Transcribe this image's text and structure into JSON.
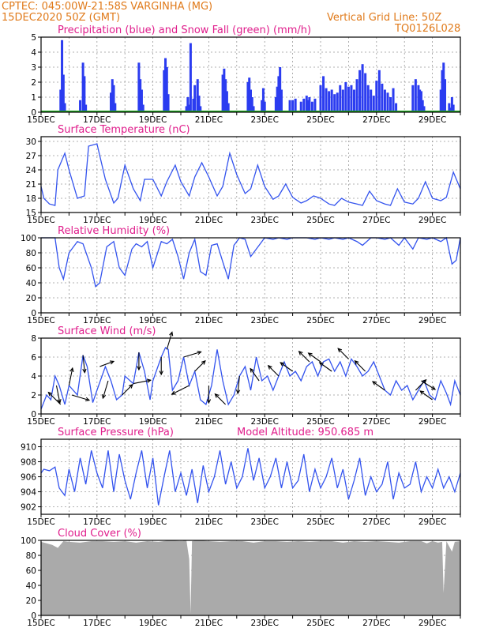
{
  "header": {
    "line1": "CPTEC:   045:00W-21:58S   VARGINHA (MG)",
    "line2_left": "15DEC2020 50Z (GMT)",
    "line2_right": "Vertical Grid Line: 50Z",
    "line3_right": "TQ0126L028"
  },
  "x_tick_labels": [
    "15DEC",
    "17DEC",
    "19DEC",
    "21DEC",
    "23DEC",
    "25DEC",
    "27DEC",
    "29DEC"
  ],
  "colors": {
    "line": "#3353ee",
    "bar": "#2b3cf0",
    "snow": "#22aa22",
    "arrow": "#000000",
    "cloud": "#aaaaaa",
    "title": "#e01e8c",
    "header": "#e07a1a"
  },
  "chart_data": [
    {
      "type": "bar",
      "title": "Precipitation (blue) and Snow Fall (green) (mm/h)",
      "xlabel": "",
      "ylabel": "",
      "ylim": [
        0,
        5
      ],
      "yticks": [
        0,
        1,
        2,
        3,
        4,
        5
      ],
      "x_range": [
        15,
        30
      ],
      "grid": true,
      "series": [
        {
          "name": "Precipitation",
          "x": [
            15.7,
            15.75,
            15.8,
            15.85,
            16.4,
            16.5,
            16.55,
            16.6,
            17.5,
            17.55,
            17.6,
            17.65,
            18.5,
            18.55,
            18.6,
            18.65,
            19.4,
            19.45,
            19.5,
            19.55,
            20.2,
            20.25,
            20.3,
            20.35,
            20.45,
            20.5,
            20.6,
            20.65,
            20.7,
            21.5,
            21.55,
            21.6,
            21.65,
            21.7,
            22.4,
            22.45,
            22.5,
            22.55,
            22.6,
            22.9,
            22.95,
            23.0,
            23.4,
            23.45,
            23.5,
            23.55,
            23.6,
            23.9,
            24.0,
            24.1,
            24.3,
            24.4,
            24.5,
            24.55,
            24.6,
            24.7,
            24.8,
            25.0,
            25.1,
            25.2,
            25.3,
            25.4,
            25.5,
            25.6,
            25.7,
            25.8,
            25.9,
            26.0,
            26.1,
            26.2,
            26.3,
            26.4,
            26.5,
            26.6,
            26.7,
            26.8,
            26.9,
            27.0,
            27.1,
            27.2,
            27.3,
            27.4,
            27.5,
            27.6,
            27.7,
            28.3,
            28.4,
            28.5,
            28.55,
            28.6,
            28.65,
            28.7,
            29.3,
            29.35,
            29.4,
            29.45,
            29.6,
            29.65,
            29.7,
            29.75
          ],
          "values": [
            1.5,
            4.8,
            2.5,
            0.6,
            0.8,
            3.3,
            2.4,
            0.5,
            1.3,
            2.2,
            1.8,
            0.6,
            3.3,
            2.2,
            1.5,
            0.5,
            2.8,
            3.6,
            3.0,
            1.2,
            0.4,
            1.0,
            0.5,
            4.6,
            0.9,
            1.8,
            2.2,
            1.1,
            0.4,
            2.5,
            2.9,
            2.2,
            1.4,
            0.6,
            2.0,
            2.3,
            1.5,
            1.0,
            0.4,
            0.8,
            1.6,
            0.7,
            1.0,
            1.7,
            2.4,
            3.0,
            1.5,
            0.8,
            0.8,
            0.9,
            0.7,
            0.9,
            1.1,
            0.8,
            1.0,
            0.7,
            0.9,
            1.8,
            2.4,
            1.6,
            1.4,
            1.5,
            1.2,
            1.3,
            1.8,
            1.5,
            2.0,
            1.7,
            1.8,
            1.5,
            2.2,
            2.8,
            3.2,
            2.6,
            1.8,
            1.5,
            1.1,
            2.1,
            2.8,
            1.9,
            1.5,
            1.3,
            1.0,
            1.6,
            0.6,
            1.8,
            2.2,
            1.8,
            1.5,
            1.4,
            0.8,
            0.4,
            1.5,
            2.8,
            3.3,
            2.2,
            0.6,
            0.3,
            1.0,
            0.5
          ]
        },
        {
          "name": "Snow Fall",
          "x": [
            15,
            30
          ],
          "values": [
            0,
            0
          ]
        }
      ]
    },
    {
      "type": "line",
      "title": "Surface Temperature (nC)",
      "ylim": [
        15,
        31
      ],
      "yticks": [
        15,
        18,
        21,
        24,
        27,
        30
      ],
      "x_range": [
        15,
        30
      ],
      "grid": true,
      "x": [
        15.0,
        15.1,
        15.3,
        15.5,
        15.6,
        15.85,
        16.0,
        16.3,
        16.55,
        16.7,
        17.0,
        17.3,
        17.6,
        17.75,
        18.0,
        18.3,
        18.55,
        18.7,
        19.0,
        19.3,
        19.5,
        19.8,
        20.0,
        20.3,
        20.5,
        20.75,
        21.0,
        21.3,
        21.5,
        21.75,
        22.0,
        22.3,
        22.5,
        22.75,
        23.0,
        23.3,
        23.5,
        23.75,
        24.0,
        24.3,
        24.5,
        24.75,
        25.0,
        25.3,
        25.5,
        25.75,
        26.0,
        26.3,
        26.5,
        26.75,
        27.0,
        27.3,
        27.5,
        27.75,
        28.0,
        28.3,
        28.5,
        28.75,
        29.0,
        29.3,
        29.5,
        29.75,
        30.0
      ],
      "values": [
        20.5,
        18,
        16.8,
        16.5,
        24,
        27.5,
        24,
        18,
        18.5,
        29,
        29.5,
        22,
        17,
        18,
        25,
        20,
        17.5,
        22,
        22,
        18.5,
        21.5,
        25,
        21.5,
        18.5,
        22.5,
        25.5,
        22.5,
        18.5,
        20.5,
        27.5,
        23,
        19,
        20,
        25,
        20.5,
        17.8,
        18.5,
        21,
        18.2,
        17,
        17.5,
        18.5,
        18,
        16.8,
        16.5,
        18,
        17.2,
        16.8,
        16.5,
        19.5,
        17.5,
        16.8,
        16.5,
        20,
        17.2,
        16.8,
        18,
        21.5,
        18,
        17.5,
        18.2,
        23.5,
        20
      ]
    },
    {
      "type": "line",
      "title": "Relative Humidity (%)",
      "ylim": [
        0,
        100
      ],
      "yticks": [
        0,
        20,
        40,
        60,
        80,
        100
      ],
      "x_range": [
        15,
        30
      ],
      "grid": true,
      "x": [
        15.0,
        15.3,
        15.5,
        15.65,
        15.8,
        16.0,
        16.3,
        16.5,
        16.8,
        16.95,
        17.1,
        17.35,
        17.6,
        17.8,
        18.0,
        18.25,
        18.4,
        18.6,
        18.8,
        19.0,
        19.3,
        19.5,
        19.7,
        19.9,
        20.1,
        20.3,
        20.5,
        20.7,
        20.9,
        21.1,
        21.3,
        21.5,
        21.7,
        21.9,
        22.1,
        22.3,
        22.5,
        22.8,
        23.0,
        23.3,
        23.5,
        23.8,
        24.0,
        24.3,
        24.5,
        24.8,
        25.0,
        25.3,
        25.5,
        25.8,
        26.0,
        26.3,
        26.5,
        26.8,
        27.0,
        27.3,
        27.5,
        27.8,
        28.0,
        28.3,
        28.5,
        28.8,
        29.0,
        29.3,
        29.5,
        29.7,
        29.85,
        30.0
      ],
      "values": [
        100,
        100,
        100,
        60,
        45,
        80,
        95,
        92,
        60,
        35,
        40,
        88,
        95,
        60,
        50,
        85,
        92,
        88,
        95,
        60,
        95,
        92,
        98,
        75,
        45,
        80,
        98,
        55,
        50,
        90,
        92,
        68,
        45,
        90,
        100,
        98,
        75,
        90,
        100,
        98,
        100,
        98,
        100,
        100,
        100,
        98,
        100,
        98,
        100,
        98,
        100,
        95,
        90,
        100,
        100,
        98,
        100,
        90,
        100,
        85,
        100,
        98,
        100,
        95,
        100,
        65,
        70,
        100
      ]
    },
    {
      "type": "line",
      "title": "Surface Wind (m/s)",
      "ylim": [
        0,
        8
      ],
      "yticks": [
        0,
        2,
        4,
        6,
        8
      ],
      "x_range": [
        15,
        30
      ],
      "grid": true,
      "x": [
        15.0,
        15.2,
        15.35,
        15.5,
        15.65,
        15.85,
        16.0,
        16.3,
        16.5,
        16.65,
        16.85,
        17.0,
        17.3,
        17.5,
        17.7,
        17.9,
        18.0,
        18.3,
        18.5,
        18.7,
        18.9,
        19.0,
        19.3,
        19.45,
        19.55,
        19.7,
        19.9,
        20.1,
        20.3,
        20.5,
        20.7,
        20.9,
        21.1,
        21.3,
        21.5,
        21.7,
        21.9,
        22.1,
        22.3,
        22.5,
        22.7,
        22.9,
        23.1,
        23.3,
        23.5,
        23.7,
        23.9,
        24.1,
        24.3,
        24.5,
        24.7,
        24.9,
        25.1,
        25.3,
        25.5,
        25.7,
        25.9,
        26.1,
        26.3,
        26.5,
        26.7,
        26.9,
        27.1,
        27.3,
        27.5,
        27.7,
        27.9,
        28.1,
        28.3,
        28.5,
        28.7,
        28.9,
        29.1,
        29.3,
        29.5,
        29.65,
        29.8,
        30.0
      ],
      "values": [
        0.5,
        2,
        1.5,
        4,
        3,
        1,
        3,
        2,
        6.2,
        5,
        1.2,
        2.5,
        5,
        3.5,
        1.5,
        2,
        4,
        3.2,
        6.5,
        4.5,
        1.5,
        3.5,
        6,
        7,
        6.8,
        2.5,
        3.5,
        6,
        3,
        4.5,
        1.5,
        1,
        3,
        6.8,
        3.5,
        1,
        2,
        4,
        5,
        2.5,
        6,
        3.5,
        4,
        2.5,
        4,
        5.5,
        4,
        4.5,
        3.5,
        5,
        5.5,
        4,
        5.5,
        5.8,
        4.5,
        5.5,
        4,
        5.8,
        5,
        4,
        4.5,
        5.5,
        4,
        2.5,
        2,
        3.5,
        2.5,
        3,
        1.5,
        2.5,
        3.5,
        2,
        1.5,
        3.5,
        2.2,
        1,
        3.5,
        2
      ]
    },
    {
      "type": "line",
      "title": "Surface Pressure (hPa)",
      "annotation": "Model Altitude: 950.685  m",
      "ylim": [
        901,
        911
      ],
      "yticks": [
        902,
        904,
        906,
        908,
        910
      ],
      "x_range": [
        15,
        30
      ],
      "grid": true,
      "x": [
        15.0,
        15.1,
        15.3,
        15.5,
        15.65,
        15.85,
        16.0,
        16.2,
        16.4,
        16.6,
        16.8,
        17.0,
        17.2,
        17.4,
        17.6,
        17.8,
        18.0,
        18.2,
        18.4,
        18.6,
        18.8,
        19.0,
        19.2,
        19.4,
        19.6,
        19.8,
        20.0,
        20.2,
        20.4,
        20.6,
        20.8,
        21.0,
        21.2,
        21.4,
        21.6,
        21.8,
        22.0,
        22.2,
        22.4,
        22.6,
        22.8,
        23.0,
        23.2,
        23.4,
        23.6,
        23.8,
        24.0,
        24.2,
        24.4,
        24.6,
        24.8,
        25.0,
        25.2,
        25.4,
        25.6,
        25.8,
        26.0,
        26.2,
        26.4,
        26.6,
        26.8,
        27.0,
        27.2,
        27.4,
        27.6,
        27.8,
        28.0,
        28.2,
        28.4,
        28.6,
        28.8,
        29.0,
        29.2,
        29.4,
        29.6,
        29.8,
        30.0
      ],
      "values": [
        906.5,
        907,
        906.8,
        907.3,
        904.5,
        903.5,
        907,
        904,
        908.5,
        905,
        909.5,
        906.5,
        904.5,
        909.5,
        904,
        909,
        905.5,
        903,
        906.5,
        909.5,
        904.5,
        908.5,
        902.2,
        906,
        909.5,
        904,
        906.5,
        903.5,
        907,
        902.5,
        907.5,
        904,
        906,
        909.5,
        905,
        908,
        904.5,
        906,
        909.8,
        905.5,
        908.5,
        904.5,
        906,
        908.5,
        904.5,
        908,
        904.5,
        905.5,
        909,
        904,
        907,
        904.5,
        906,
        908.5,
        904.5,
        907,
        903,
        905.5,
        908.5,
        903.5,
        906,
        904,
        905,
        908,
        903,
        906.5,
        904.5,
        905,
        908,
        904,
        906,
        904.5,
        907,
        904.5,
        906,
        904,
        906.5
      ]
    },
    {
      "type": "area",
      "title": "Cloud Cover (%)",
      "ylim": [
        0,
        100
      ],
      "yticks": [
        0,
        20,
        40,
        60,
        80,
        100
      ],
      "x_range": [
        15,
        30
      ],
      "grid": true,
      "x": [
        15.0,
        15.2,
        15.4,
        15.6,
        15.8,
        16.0,
        16.4,
        16.8,
        17.2,
        17.6,
        18.0,
        18.4,
        18.8,
        19.2,
        19.6,
        20.0,
        20.2,
        20.3,
        20.35,
        20.4,
        20.6,
        21.0,
        21.4,
        21.8,
        22.2,
        22.6,
        23.0,
        23.4,
        23.8,
        24.2,
        24.6,
        25.0,
        25.4,
        25.8,
        26.2,
        26.6,
        27.0,
        27.4,
        27.8,
        28.2,
        28.6,
        28.8,
        29.0,
        29.2,
        29.35,
        29.4,
        29.5,
        29.7,
        29.8,
        30.0
      ],
      "values": [
        98,
        96,
        94,
        90,
        99,
        98,
        97,
        99,
        99,
        98,
        99,
        97,
        99,
        98,
        100,
        99,
        100,
        75,
        2,
        99,
        100,
        99,
        98,
        99,
        99,
        97,
        99,
        99,
        98,
        99,
        98,
        99,
        99,
        97,
        99,
        98,
        99,
        98,
        97,
        99,
        99,
        96,
        99,
        97,
        98,
        30,
        99,
        85,
        98,
        99
      ]
    }
  ],
  "wind_arrows": [
    {
      "x": 15.55,
      "u": 0.2,
      "v": -1.0
    },
    {
      "x": 15.7,
      "u": -0.7,
      "v": 0.7
    },
    {
      "x": 16.0,
      "u": 0.2,
      "v": 1.0
    },
    {
      "x": 16.1,
      "u": 1.0,
      "v": -0.3
    },
    {
      "x": 16.5,
      "u": 0.1,
      "v": -1.0
    },
    {
      "x": 17.1,
      "u": 0.8,
      "v": 0.3
    },
    {
      "x": 17.4,
      "u": -0.3,
      "v": -1.0
    },
    {
      "x": 17.9,
      "u": 0.6,
      "v": 0.6
    },
    {
      "x": 18.3,
      "u": 1.0,
      "v": 0.2
    },
    {
      "x": 18.5,
      "u": 0.0,
      "v": -1.0
    },
    {
      "x": 19.3,
      "u": 0.0,
      "v": -1.0
    },
    {
      "x": 19.5,
      "u": 0.3,
      "v": 1.0
    },
    {
      "x": 20.1,
      "u": 1.0,
      "v": 0.3
    },
    {
      "x": 20.3,
      "u": -1.0,
      "v": -0.5
    },
    {
      "x": 20.5,
      "u": 0.6,
      "v": 0.6
    },
    {
      "x": 21.0,
      "u": 0.0,
      "v": -1.0
    },
    {
      "x": 21.6,
      "u": -0.6,
      "v": 0.6
    },
    {
      "x": 22.1,
      "u": -0.1,
      "v": -1.0
    },
    {
      "x": 22.8,
      "u": -0.5,
      "v": 0.7
    },
    {
      "x": 23.5,
      "u": -0.6,
      "v": 0.6
    },
    {
      "x": 24.0,
      "u": -0.7,
      "v": 0.5
    },
    {
      "x": 24.6,
      "u": -0.6,
      "v": 0.6
    },
    {
      "x": 25.0,
      "u": -0.7,
      "v": 0.5
    },
    {
      "x": 25.4,
      "u": -0.7,
      "v": 0.5
    },
    {
      "x": 26.0,
      "u": -0.6,
      "v": 0.6
    },
    {
      "x": 26.6,
      "u": -0.6,
      "v": 0.6
    },
    {
      "x": 27.3,
      "u": -0.7,
      "v": 0.5
    },
    {
      "x": 28.4,
      "u": 0.6,
      "v": 0.6
    },
    {
      "x": 28.6,
      "u": 0.8,
      "v": -0.5
    },
    {
      "x": 29.0,
      "u": -0.7,
      "v": 0.5
    }
  ]
}
